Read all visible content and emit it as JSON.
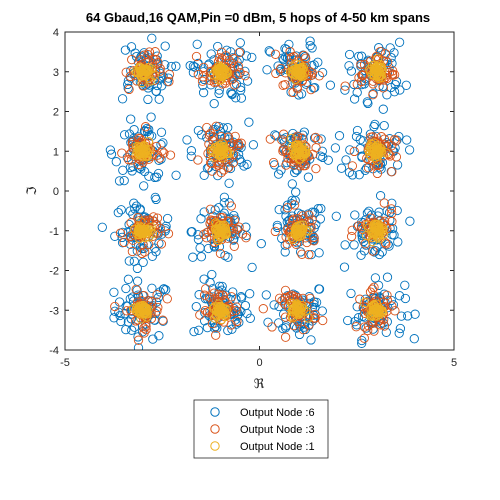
{
  "chart_data": {
    "type": "scatter",
    "title": "64 Gbaud,16 QAM,Pin =0 dBm, 5  hops of 4-50 km  spans",
    "xlabel": "ℜ",
    "ylabel": "ℑ",
    "xlim": [
      -5,
      5
    ],
    "ylim": [
      -4,
      4
    ],
    "xticks": [
      -5,
      0,
      5
    ],
    "yticks": [
      -4,
      -3,
      -2,
      -1,
      0,
      1,
      2,
      3,
      4
    ],
    "xtick_labels": [
      "-5",
      "0",
      "5"
    ],
    "ytick_labels": [
      "-4",
      "-3",
      "-2",
      "-1",
      "0",
      "1",
      "2",
      "3",
      "4"
    ],
    "grid": false,
    "legend_position": "bottom-outside",
    "marker": "open-circle",
    "constellation_points": {
      "x": [
        -3,
        -1,
        1,
        3
      ],
      "y": [
        -3,
        -1,
        1,
        3
      ]
    },
    "series": [
      {
        "name": "Output Node :6",
        "color": "#0072BD",
        "spread": 0.36,
        "points_per_symbol": 60
      },
      {
        "name": "Output Node :3",
        "color": "#D95319",
        "spread": 0.24,
        "points_per_symbol": 45
      },
      {
        "name": "Output Node :1",
        "color": "#EDB120",
        "spread": 0.09,
        "points_per_symbol": 40
      }
    ]
  }
}
